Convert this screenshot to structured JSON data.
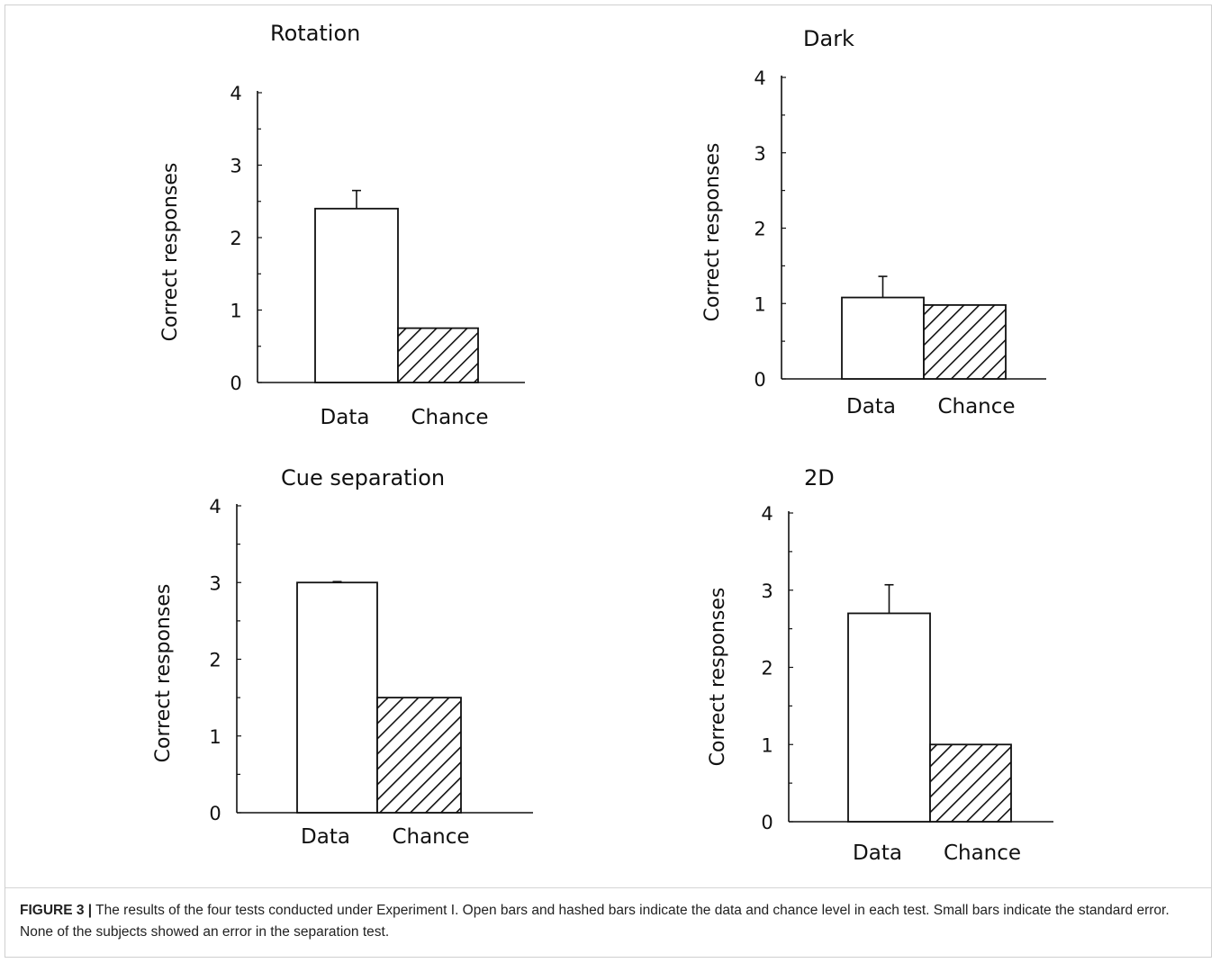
{
  "chart_data": [
    {
      "type": "bar",
      "title": "Rotation",
      "ylabel": "Correct responses",
      "categories": [
        "Data",
        "Chance"
      ],
      "values": [
        2.4,
        0.75
      ],
      "errors": [
        0.25,
        null
      ],
      "yticks": [
        "0",
        "1",
        "2",
        "3",
        "4"
      ],
      "ylim": [
        0,
        4
      ],
      "fills": [
        "open",
        "hatched"
      ]
    },
    {
      "type": "bar",
      "title": "Dark",
      "ylabel": "Correct responses",
      "categories": [
        "Data",
        "Chance"
      ],
      "values": [
        1.08,
        0.98
      ],
      "errors": [
        0.28,
        null
      ],
      "yticks": [
        "0",
        "1",
        "2",
        "3",
        "4"
      ],
      "ylim": [
        0,
        4
      ],
      "fills": [
        "open",
        "hatched"
      ]
    },
    {
      "type": "bar",
      "title": "Cue separation",
      "ylabel": "Correct responses",
      "categories": [
        "Data",
        "Chance"
      ],
      "values": [
        3.0,
        1.5
      ],
      "errors": [
        0,
        null
      ],
      "yticks": [
        "0",
        "1",
        "2",
        "3",
        "4"
      ],
      "ylim": [
        0,
        4
      ],
      "fills": [
        "open",
        "hatched"
      ]
    },
    {
      "type": "bar",
      "title": "2D",
      "ylabel": "Correct responses",
      "categories": [
        "Data",
        "Chance"
      ],
      "values": [
        2.7,
        1.0
      ],
      "errors": [
        0.37,
        null
      ],
      "yticks": [
        "0",
        "1",
        "2",
        "3",
        "4"
      ],
      "ylim": [
        0,
        4
      ],
      "fills": [
        "open",
        "hatched"
      ]
    }
  ],
  "caption": {
    "label": "FIGURE 3 |",
    "text": " The results of the four tests conducted under Experiment I. Open bars and hashed bars indicate the data and chance level in each test. Small bars indicate the standard error. None of the subjects showed an error in the separation test."
  },
  "colors": {
    "ink": "#111111",
    "bar_fill": "#ffffff"
  }
}
